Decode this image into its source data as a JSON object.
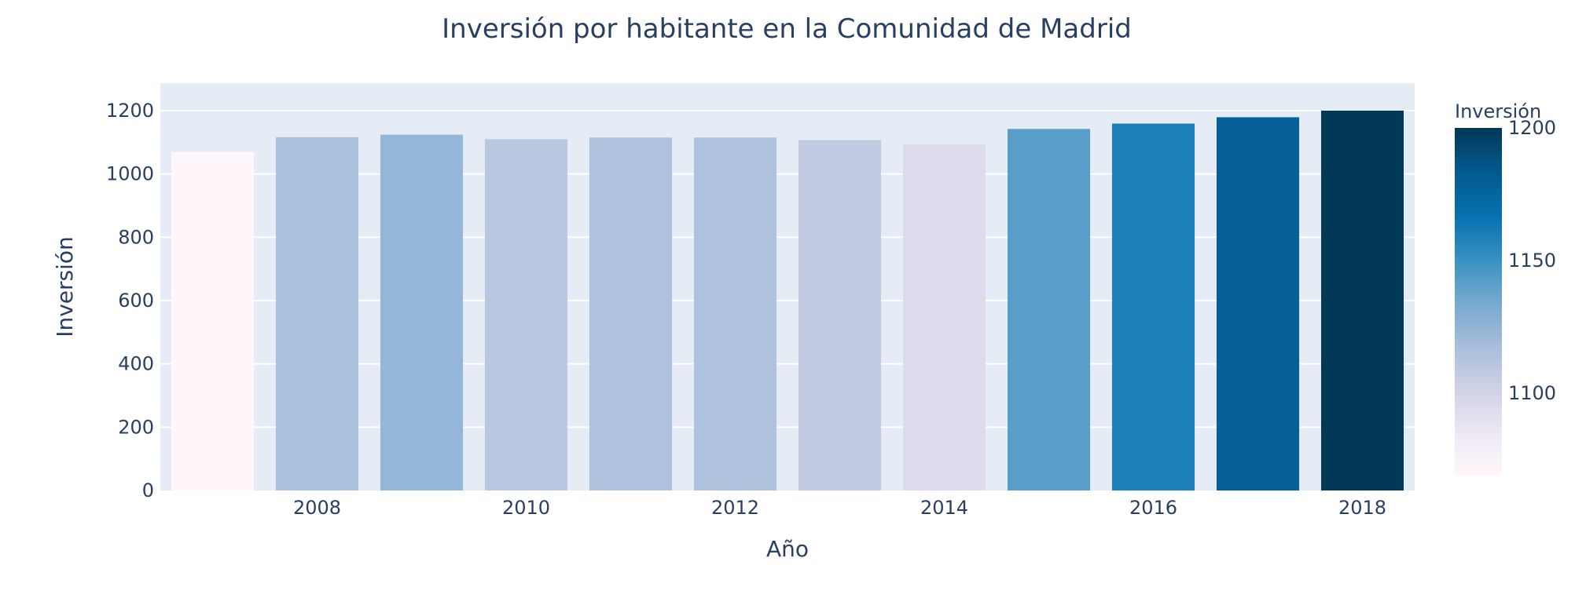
{
  "chart_data": {
    "type": "bar",
    "title": "Inversión por habitante en la Comunidad de Madrid",
    "xlabel": "Año",
    "ylabel": "Inversión",
    "x": [
      2007,
      2008,
      2009,
      2010,
      2011,
      2012,
      2013,
      2014,
      2015,
      2016,
      2017,
      2018
    ],
    "values": [
      1069,
      1116,
      1124,
      1110,
      1115,
      1115,
      1107,
      1094,
      1142,
      1159,
      1179,
      1200
    ],
    "x_ticks": [
      "2008",
      "2010",
      "2012",
      "2014",
      "2016",
      "2018"
    ],
    "y_ticks": [
      "0",
      "200",
      "400",
      "600",
      "800",
      "1000",
      "1200"
    ],
    "ylim": [
      0,
      1200
    ],
    "grid": true,
    "colorbar": {
      "title": "Inversión",
      "ticks": [
        "1100",
        "1150",
        "1200"
      ],
      "range": [
        1069,
        1200
      ],
      "colorscale": [
        "#fff7fb",
        "#ece7f2",
        "#d0d1e6",
        "#a6bddb",
        "#74a9cf",
        "#3690c0",
        "#0570b0",
        "#045a8d",
        "#023858"
      ]
    },
    "plot_background": "#e5ecf6",
    "text_color": "#2a3f5f"
  }
}
